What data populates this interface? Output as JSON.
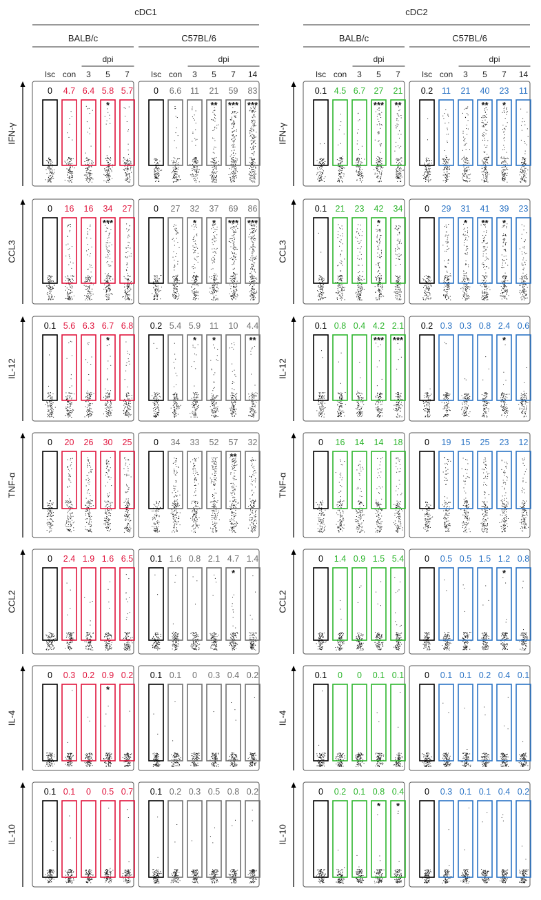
{
  "colors": {
    "isotype": "#000000",
    "cdc1_balbc": "#e0143c",
    "cdc1_c57": "#707070",
    "cdc2_balbc": "#2db52d",
    "cdc2_c57": "#2a73c4",
    "events": "#1a1a1a"
  },
  "chart_data": [
    {
      "type": "scatter",
      "subtype": "flow-cytometry dot-plot grid (percent positive per gate)",
      "title": "cDC1",
      "groups": [
        {
          "name": "BALB/c",
          "color_key": "cdc1_balbc",
          "columns": [
            "Isc",
            "con",
            "3",
            "5",
            "7"
          ],
          "dpi_label": "dpi",
          "dpi_columns": [
            "3",
            "5",
            "7"
          ]
        },
        {
          "name": "C57BL/6",
          "color_key": "cdc1_c57",
          "columns": [
            "Isc",
            "con",
            "3",
            "5",
            "7",
            "14"
          ],
          "dpi_label": "dpi",
          "dpi_columns": [
            "3",
            "5",
            "7",
            "14"
          ]
        }
      ],
      "rows": [
        "IFN-γ",
        "CCL3",
        "IL-12",
        "TNF-α",
        "CCL2",
        "IL-4",
        "IL-10"
      ],
      "values": {
        "BALB/c": [
          [
            "0",
            "4.7",
            "6.4",
            "5.8",
            "5.7"
          ],
          [
            "0",
            "16",
            "16",
            "34",
            "27"
          ],
          [
            "0.1",
            "5.6",
            "6.3",
            "6.7",
            "6.8"
          ],
          [
            "0",
            "20",
            "26",
            "30",
            "25"
          ],
          [
            "0",
            "2.4",
            "1.9",
            "1.6",
            "6.5"
          ],
          [
            "0",
            "0.3",
            "0.2",
            "0.9",
            "0.2"
          ],
          [
            "0.1",
            "0.1",
            "0",
            "0.5",
            "0.7"
          ]
        ],
        "C57BL/6": [
          [
            "0",
            "6.6",
            "11",
            "21",
            "59",
            "83"
          ],
          [
            "0",
            "27",
            "32",
            "37",
            "69",
            "86"
          ],
          [
            "0.2",
            "5.4",
            "5.9",
            "11",
            "10",
            "4.4"
          ],
          [
            "0",
            "34",
            "33",
            "52",
            "57",
            "32"
          ],
          [
            "0.1",
            "1.6",
            "0.8",
            "2.1",
            "4.7",
            "1.4"
          ],
          [
            "0.1",
            "0.1",
            "0",
            "0.3",
            "0.4",
            "0.2"
          ],
          [
            "0.1",
            "0.2",
            "0.3",
            "0.5",
            "0.8",
            "0.2"
          ]
        ]
      },
      "significance": {
        "BALB/c": [
          [
            "",
            "",
            "",
            "*",
            ""
          ],
          [
            "",
            "",
            "",
            "***",
            ""
          ],
          [
            "",
            "",
            "",
            "*",
            ""
          ],
          [
            "",
            "",
            "",
            "",
            ""
          ],
          [
            "",
            "",
            "",
            "",
            ""
          ],
          [
            "",
            "",
            "",
            "*",
            ""
          ],
          [
            "",
            "",
            "",
            "",
            ""
          ]
        ],
        "C57BL/6": [
          [
            "",
            "",
            "",
            "**",
            "***",
            "***"
          ],
          [
            "",
            "",
            "*",
            "*",
            "***",
            "***"
          ],
          [
            "",
            "",
            "*",
            "*",
            "",
            "**"
          ],
          [
            "",
            "",
            "",
            "",
            "**",
            ""
          ],
          [
            "",
            "",
            "",
            "",
            "*",
            ""
          ],
          [
            "",
            "",
            "",
            "",
            "",
            ""
          ],
          [
            "",
            "",
            "",
            "",
            "",
            ""
          ]
        ]
      }
    },
    {
      "type": "scatter",
      "subtype": "flow-cytometry dot-plot grid (percent positive per gate)",
      "title": "cDC2",
      "groups": [
        {
          "name": "BALB/c",
          "color_key": "cdc2_balbc",
          "columns": [
            "Isc",
            "con",
            "3",
            "5",
            "7"
          ],
          "dpi_label": "dpi",
          "dpi_columns": [
            "3",
            "5",
            "7"
          ]
        },
        {
          "name": "C57BL/6",
          "color_key": "cdc2_c57",
          "columns": [
            "Isc",
            "con",
            "3",
            "5",
            "7",
            "14"
          ],
          "dpi_label": "dpi",
          "dpi_columns": [
            "3",
            "5",
            "7",
            "14"
          ]
        }
      ],
      "rows": [
        "IFN-γ",
        "CCL3",
        "IL-12",
        "TNF-α",
        "CCL2",
        "IL-4",
        "IL-10"
      ],
      "values": {
        "BALB/c": [
          [
            "0.1",
            "4.5",
            "6.7",
            "27",
            "21"
          ],
          [
            "0.1",
            "21",
            "23",
            "42",
            "34"
          ],
          [
            "0.1",
            "0.8",
            "0.4",
            "4.2",
            "2.1"
          ],
          [
            "0",
            "16",
            "14",
            "14",
            "18"
          ],
          [
            "0",
            "1.4",
            "0.9",
            "1.5",
            "5.4"
          ],
          [
            "0.1",
            "0",
            "0",
            "0.1",
            "0.1"
          ],
          [
            "0",
            "0.2",
            "0.1",
            "0.8",
            "0.4"
          ]
        ],
        "C57BL/6": [
          [
            "0.2",
            "11",
            "21",
            "40",
            "23",
            "11"
          ],
          [
            "0",
            "29",
            "31",
            "41",
            "39",
            "23"
          ],
          [
            "0.2",
            "0.3",
            "0.3",
            "0.8",
            "2.4",
            "0.6"
          ],
          [
            "0",
            "19",
            "15",
            "25",
            "23",
            "12"
          ],
          [
            "0",
            "0.5",
            "0.5",
            "1.5",
            "1.2",
            "0.8"
          ],
          [
            "0",
            "0.1",
            "0.1",
            "0.2",
            "0.4",
            "0.1"
          ],
          [
            "0",
            "0.3",
            "0.1",
            "0.1",
            "0.4",
            "0.2"
          ]
        ]
      },
      "significance": {
        "BALB/c": [
          [
            "",
            "",
            "",
            "***",
            "**"
          ],
          [
            "",
            "",
            "",
            "*",
            ""
          ],
          [
            "",
            "",
            "",
            "***",
            "***"
          ],
          [
            "",
            "",
            "",
            "",
            ""
          ],
          [
            "",
            "",
            "",
            "",
            ""
          ],
          [
            "",
            "",
            "",
            "",
            ""
          ],
          [
            "",
            "",
            "",
            "*",
            "*"
          ]
        ],
        "C57BL/6": [
          [
            "",
            "",
            "",
            "**",
            "*",
            ""
          ],
          [
            "",
            "",
            "*",
            "**",
            "*",
            ""
          ],
          [
            "",
            "",
            "",
            "",
            "*",
            ""
          ],
          [
            "",
            "",
            "",
            "",
            "",
            ""
          ],
          [
            "",
            "",
            "",
            "",
            "*",
            ""
          ],
          [
            "",
            "",
            "",
            "",
            "",
            ""
          ],
          [
            "",
            "",
            "",
            "",
            "",
            ""
          ]
        ]
      }
    }
  ]
}
